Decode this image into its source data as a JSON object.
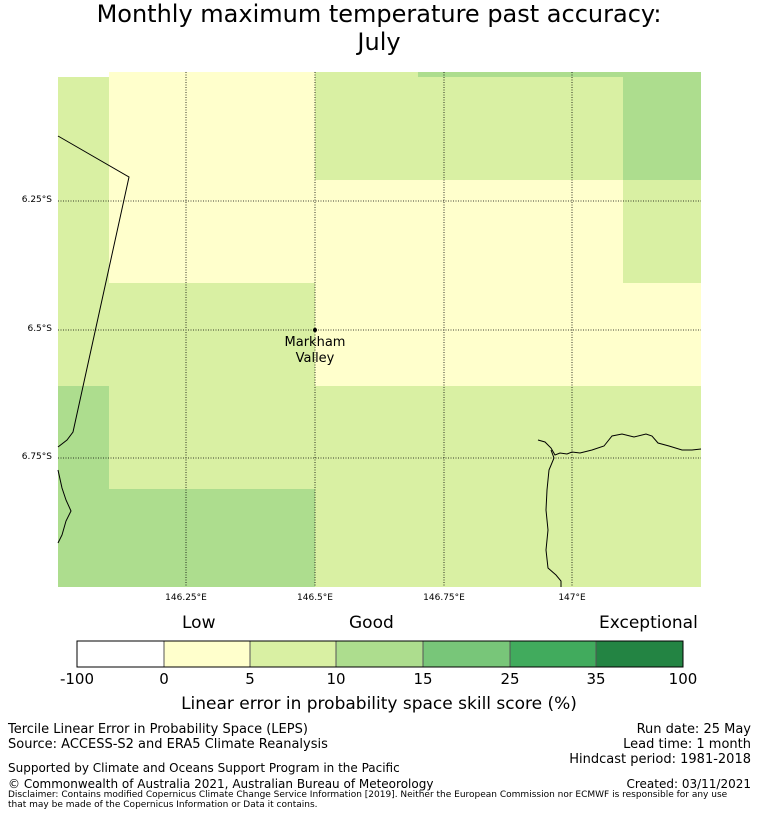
{
  "title_line1": "Monthly maximum temperature past accuracy:",
  "title_line2": "July",
  "map": {
    "lat_ticks": [
      "6.25°S",
      "6.5°S",
      "6.75°S"
    ],
    "lon_ticks": [
      "146.25°E",
      "146.5°E",
      "146.75°E",
      "147°E"
    ],
    "place": {
      "name_line1": "Markham",
      "name_line2": "Valley"
    },
    "colors": {
      "low": "#ffffcc",
      "good": "#d9f0a3",
      "good15": "#addd8e"
    }
  },
  "legend": {
    "categories": [
      "Low",
      "Good",
      "Exceptional"
    ],
    "ticks": [
      "-100",
      "0",
      "5",
      "10",
      "15",
      "25",
      "35",
      "100"
    ],
    "colors": [
      "#ffffff",
      "#ffffcc",
      "#d9f0a3",
      "#addd8e",
      "#78c679",
      "#41ab5d",
      "#238443"
    ],
    "title": "Linear error in probability space skill score (%)"
  },
  "footer": {
    "left1": "Tercile Linear Error in Probability Space (LEPS)",
    "left2": "Source: ACCESS-S2 and ERA5 Climate Reanalysis",
    "support": "Supported by Climate and Oceans Support Program in the Pacific",
    "copyright": "© Commonwealth of Australia 2021, Australian Bureau of Meteorology",
    "run_date": "Run date: 25 May",
    "lead_time": "Lead time: 1 month",
    "hindcast": "Hindcast period: 1981-2018",
    "created": "Created: 03/11/2021",
    "disclaimer1": "Disclaimer: Contains modified Copernicus Climate Change Service Information [2019]. Neither the European Commission nor ECMWF is responsible for any use",
    "disclaimer2": "that may be made of the Copernicus Information or Data it contains."
  }
}
